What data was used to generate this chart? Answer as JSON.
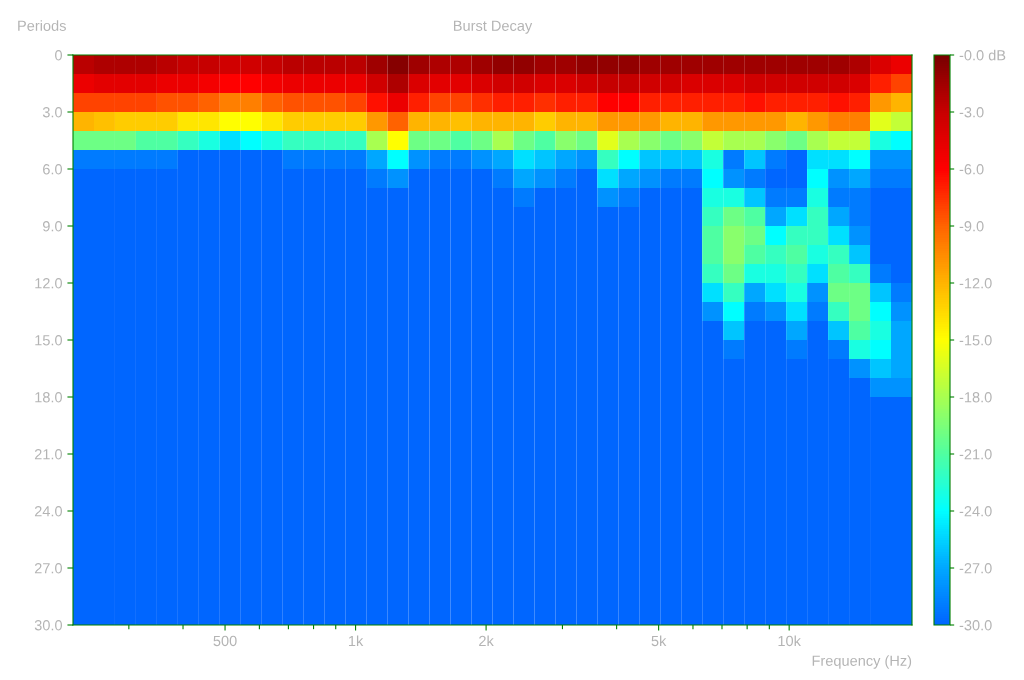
{
  "chart_data": {
    "type": "heatmap",
    "title": "Burst Decay",
    "xlabel": "Frequency (Hz)",
    "ylabel": "Periods",
    "log": "x",
    "xlim": [
      223,
      19200
    ],
    "xticks": [
      {
        "value": 300,
        "label": null
      },
      {
        "value": 400,
        "label": null
      },
      500,
      {
        "value": 600,
        "label": null
      },
      {
        "value": 700,
        "label": null
      },
      {
        "value": 800,
        "label": null
      },
      {
        "value": 900,
        "label": null
      },
      {
        "value": 1000,
        "label": "1k"
      },
      {
        "value": 2000,
        "label": "2k"
      },
      {
        "value": 3000,
        "label": null
      },
      {
        "value": 4000,
        "label": null
      },
      {
        "value": 5000,
        "label": "5k"
      },
      {
        "value": 6000,
        "label": null
      },
      {
        "value": 7000,
        "label": null
      },
      {
        "value": 8000,
        "label": null
      },
      {
        "value": 9000,
        "label": null
      },
      {
        "value": 10000,
        "label": "10k"
      }
    ],
    "ylim": [
      30,
      0
    ],
    "yticks": [
      0,
      {
        "value": 3,
        "label": "3.0"
      },
      {
        "value": 6,
        "label": "6.0"
      },
      {
        "value": 9,
        "label": "9.0"
      },
      {
        "value": 12,
        "label": "12.0"
      },
      {
        "value": 15,
        "label": "15.0"
      },
      {
        "value": 18,
        "label": "18.0"
      },
      {
        "value": 21,
        "label": "21.0"
      },
      {
        "value": 24,
        "label": "24.0"
      },
      {
        "value": 27,
        "label": "27.0"
      },
      {
        "value": 30,
        "label": "30.0"
      }
    ],
    "clim": [
      -30,
      0
    ],
    "cticks": [
      {
        "value": 0,
        "label": "-0.0 dB"
      },
      {
        "value": -3,
        "label": "-3.0"
      },
      {
        "value": -6,
        "label": "-6.0"
      },
      {
        "value": -9,
        "label": "-9.0"
      },
      {
        "value": -12,
        "label": "-12.0"
      },
      {
        "value": -15,
        "label": "-15.0"
      },
      {
        "value": -18,
        "label": "-18.0"
      },
      {
        "value": -21,
        "label": "-21.0"
      },
      {
        "value": -24,
        "label": "-24.0"
      },
      {
        "value": -27,
        "label": "-27.0"
      },
      {
        "value": -30,
        "label": "-30.0"
      }
    ],
    "cells": [
      [
        -2.5,
        -2,
        -2,
        -2,
        -2.5,
        -3,
        -3,
        -3.5,
        -3.5,
        -3,
        -2.5,
        -2.5,
        -2.5,
        -2.5,
        -1.5,
        -0.5,
        -1.5,
        -2,
        -2,
        -1.5,
        -1,
        -1,
        -1.5,
        -1.5,
        -1,
        -1,
        -1,
        -1.5,
        -1.5,
        -1.5,
        -1.5,
        -1.5,
        -1.5,
        -1.5,
        -1.5,
        -1.5,
        -1.5,
        -2,
        -4,
        -5
      ],
      [
        -5,
        -4.5,
        -4.5,
        -4.5,
        -5,
        -5,
        -5.5,
        -6,
        -6,
        -5.5,
        -5,
        -5,
        -5,
        -5,
        -3.5,
        -2,
        -4,
        -4.5,
        -4.5,
        -4,
        -3.5,
        -3.5,
        -4,
        -4,
        -3.5,
        -3,
        -3,
        -3.5,
        -3.5,
        -4,
        -4,
        -4,
        -3.5,
        -3.5,
        -3.5,
        -3.5,
        -3.5,
        -4,
        -7,
        -8
      ],
      [
        -8,
        -8,
        -8,
        -8,
        -8.5,
        -8.5,
        -9,
        -10,
        -10,
        -9,
        -8.5,
        -8.5,
        -8.5,
        -8,
        -6.5,
        -5,
        -7,
        -8,
        -8,
        -7.5,
        -7,
        -7,
        -7.5,
        -7,
        -7,
        -6,
        -6,
        -7,
        -7,
        -7,
        -7,
        -7,
        -6.5,
        -7,
        -7,
        -7,
        -6.5,
        -7,
        -11,
        -12
      ],
      [
        -12,
        -12.5,
        -13,
        -13,
        -13,
        -14,
        -14,
        -15,
        -15,
        -14,
        -13,
        -13,
        -13,
        -13,
        -11,
        -9,
        -12,
        -12,
        -12.5,
        -12,
        -12,
        -12,
        -13,
        -12,
        -12,
        -11,
        -11,
        -11,
        -12,
        -12,
        -11,
        -11,
        -11,
        -11,
        -12,
        -11,
        -10,
        -10,
        -16,
        -17
      ],
      [
        -20,
        -20,
        -20,
        -21,
        -21,
        -22,
        -23,
        -25,
        -24,
        -23,
        -22,
        -22,
        -22,
        -22,
        -18,
        -15,
        -20,
        -20,
        -21,
        -20,
        -18,
        -20,
        -21,
        -19,
        -20,
        -16,
        -18,
        -19,
        -20,
        -19,
        -17,
        -18,
        -18,
        -19,
        -20,
        -18,
        -17,
        -17,
        -23,
        -24
      ],
      [
        -29,
        -29,
        -29,
        -29,
        -29,
        -30,
        -30,
        -30,
        -30,
        -30,
        -29,
        -29,
        -29,
        -29,
        -27,
        -24,
        -28,
        -29,
        -29,
        -28,
        -27,
        -25,
        -26,
        -27,
        -28,
        -22,
        -24,
        -26,
        -26,
        -26,
        -23,
        -29,
        -26,
        -29,
        -30,
        -25,
        -25,
        -24,
        -28,
        -28
      ],
      [
        -30,
        -30,
        -30,
        -30,
        -30,
        -30,
        -30,
        -30,
        -30,
        -30,
        -30,
        -30,
        -30,
        -30,
        -29,
        -28,
        -30,
        -30,
        -30,
        -30,
        -29,
        -27,
        -28,
        -29,
        -30,
        -25,
        -27,
        -28,
        -29,
        -29,
        -24,
        -28,
        -29,
        -30,
        -30,
        -24,
        -28,
        -27,
        -29,
        -29
      ],
      [
        -30,
        -30,
        -30,
        -30,
        -30,
        -30,
        -30,
        -30,
        -30,
        -30,
        -30,
        -30,
        -30,
        -30,
        -30,
        -30,
        -30,
        -30,
        -30,
        -30,
        -30,
        -29,
        -30,
        -30,
        -30,
        -28,
        -29,
        -30,
        -30,
        -30,
        -23,
        -23,
        -26,
        -29,
        -29,
        -23,
        -29,
        -29,
        -30,
        -30
      ],
      [
        -30,
        -30,
        -30,
        -30,
        -30,
        -30,
        -30,
        -30,
        -30,
        -30,
        -30,
        -30,
        -30,
        -30,
        -30,
        -30,
        -30,
        -30,
        -30,
        -30,
        -30,
        -30,
        -30,
        -30,
        -30,
        -30,
        -30,
        -30,
        -30,
        -30,
        -22,
        -20,
        -21,
        -27,
        -25,
        -22,
        -27,
        -29,
        -30,
        -30
      ],
      [
        -30,
        -30,
        -30,
        -30,
        -30,
        -30,
        -30,
        -30,
        -30,
        -30,
        -30,
        -30,
        -30,
        -30,
        -30,
        -30,
        -30,
        -30,
        -30,
        -30,
        -30,
        -30,
        -30,
        -30,
        -30,
        -30,
        -30,
        -30,
        -30,
        -30,
        -21,
        -19,
        -20,
        -24,
        -22,
        -22,
        -25,
        -28,
        -30,
        -30
      ],
      [
        -30,
        -30,
        -30,
        -30,
        -30,
        -30,
        -30,
        -30,
        -30,
        -30,
        -30,
        -30,
        -30,
        -30,
        -30,
        -30,
        -30,
        -30,
        -30,
        -30,
        -30,
        -30,
        -30,
        -30,
        -30,
        -30,
        -30,
        -30,
        -30,
        -30,
        -21,
        -19,
        -21,
        -22,
        -21,
        -23,
        -22,
        -26,
        -30,
        -30
      ],
      [
        -30,
        -30,
        -30,
        -30,
        -30,
        -30,
        -30,
        -30,
        -30,
        -30,
        -30,
        -30,
        -30,
        -30,
        -30,
        -30,
        -30,
        -30,
        -30,
        -30,
        -30,
        -30,
        -30,
        -30,
        -30,
        -30,
        -30,
        -30,
        -30,
        -30,
        -22,
        -20,
        -23,
        -23,
        -22,
        -25,
        -21,
        -22,
        -29,
        -30
      ],
      [
        -30,
        -30,
        -30,
        -30,
        -30,
        -30,
        -30,
        -30,
        -30,
        -30,
        -30,
        -30,
        -30,
        -30,
        -30,
        -30,
        -30,
        -30,
        -30,
        -30,
        -30,
        -30,
        -30,
        -30,
        -30,
        -30,
        -30,
        -30,
        -30,
        -30,
        -25,
        -22,
        -27,
        -25,
        -23,
        -28,
        -20,
        -20,
        -26,
        -29
      ],
      [
        -30,
        -30,
        -30,
        -30,
        -30,
        -30,
        -30,
        -30,
        -30,
        -30,
        -30,
        -30,
        -30,
        -30,
        -30,
        -30,
        -30,
        -30,
        -30,
        -30,
        -30,
        -30,
        -30,
        -30,
        -30,
        -30,
        -30,
        -30,
        -30,
        -30,
        -28,
        -24,
        -29,
        -28,
        -25,
        -29,
        -22,
        -20,
        -24,
        -28
      ],
      [
        -30,
        -30,
        -30,
        -30,
        -30,
        -30,
        -30,
        -30,
        -30,
        -30,
        -30,
        -30,
        -30,
        -30,
        -30,
        -30,
        -30,
        -30,
        -30,
        -30,
        -30,
        -30,
        -30,
        -30,
        -30,
        -30,
        -30,
        -30,
        -30,
        -30,
        -30,
        -26,
        -30,
        -30,
        -27,
        -30,
        -26,
        -21,
        -23,
        -27
      ],
      [
        -30,
        -30,
        -30,
        -30,
        -30,
        -30,
        -30,
        -30,
        -30,
        -30,
        -30,
        -30,
        -30,
        -30,
        -30,
        -30,
        -30,
        -30,
        -30,
        -30,
        -30,
        -30,
        -30,
        -30,
        -30,
        -30,
        -30,
        -30,
        -30,
        -30,
        -30,
        -29,
        -30,
        -30,
        -29,
        -30,
        -29,
        -23,
        -24,
        -27
      ],
      [
        -30,
        -30,
        -30,
        -30,
        -30,
        -30,
        -30,
        -30,
        -30,
        -30,
        -30,
        -30,
        -30,
        -30,
        -30,
        -30,
        -30,
        -30,
        -30,
        -30,
        -30,
        -30,
        -30,
        -30,
        -30,
        -30,
        -30,
        -30,
        -30,
        -30,
        -30,
        -30,
        -30,
        -30,
        -30,
        -30,
        -30,
        -28,
        -26,
        -27
      ],
      [
        -30,
        -30,
        -30,
        -30,
        -30,
        -30,
        -30,
        -30,
        -30,
        -30,
        -30,
        -30,
        -30,
        -30,
        -30,
        -30,
        -30,
        -30,
        -30,
        -30,
        -30,
        -30,
        -30,
        -30,
        -30,
        -30,
        -30,
        -30,
        -30,
        -30,
        -30,
        -30,
        -30,
        -30,
        -30,
        -30,
        -30,
        -30,
        -28,
        -28
      ],
      [
        -30,
        -30,
        -30,
        -30,
        -30,
        -30,
        -30,
        -30,
        -30,
        -30,
        -30,
        -30,
        -30,
        -30,
        -30,
        -30,
        -30,
        -30,
        -30,
        -30,
        -30,
        -30,
        -30,
        -30,
        -30,
        -30,
        -30,
        -30,
        -30,
        -30,
        -30,
        -30,
        -30,
        -30,
        -30,
        -30,
        -30,
        -30,
        -30,
        -30
      ],
      [
        -30,
        -30,
        -30,
        -30,
        -30,
        -30,
        -30,
        -30,
        -30,
        -30,
        -30,
        -30,
        -30,
        -30,
        -30,
        -30,
        -30,
        -30,
        -30,
        -30,
        -30,
        -30,
        -30,
        -30,
        -30,
        -30,
        -30,
        -30,
        -30,
        -30,
        -30,
        -30,
        -30,
        -30,
        -30,
        -30,
        -30,
        -30,
        -30,
        -30
      ],
      [
        -30,
        -30,
        -30,
        -30,
        -30,
        -30,
        -30,
        -30,
        -30,
        -30,
        -30,
        -30,
        -30,
        -30,
        -30,
        -30,
        -30,
        -30,
        -30,
        -30,
        -30,
        -30,
        -30,
        -30,
        -30,
        -30,
        -30,
        -30,
        -30,
        -30,
        -30,
        -30,
        -30,
        -30,
        -30,
        -30,
        -30,
        -30,
        -30,
        -30
      ],
      [
        -30,
        -30,
        -30,
        -30,
        -30,
        -30,
        -30,
        -30,
        -30,
        -30,
        -30,
        -30,
        -30,
        -30,
        -30,
        -30,
        -30,
        -30,
        -30,
        -30,
        -30,
        -30,
        -30,
        -30,
        -30,
        -30,
        -30,
        -30,
        -30,
        -30,
        -30,
        -30,
        -30,
        -30,
        -30,
        -30,
        -30,
        -30,
        -30,
        -30
      ],
      [
        -30,
        -30,
        -30,
        -30,
        -30,
        -30,
        -30,
        -30,
        -30,
        -30,
        -30,
        -30,
        -30,
        -30,
        -30,
        -30,
        -30,
        -30,
        -30,
        -30,
        -30,
        -30,
        -30,
        -30,
        -30,
        -30,
        -30,
        -30,
        -30,
        -30,
        -30,
        -30,
        -30,
        -30,
        -30,
        -30,
        -30,
        -30,
        -30,
        -30
      ],
      [
        -30,
        -30,
        -30,
        -30,
        -30,
        -30,
        -30,
        -30,
        -30,
        -30,
        -30,
        -30,
        -30,
        -30,
        -30,
        -30,
        -30,
        -30,
        -30,
        -30,
        -30,
        -30,
        -30,
        -30,
        -30,
        -30,
        -30,
        -30,
        -30,
        -30,
        -30,
        -30,
        -30,
        -30,
        -30,
        -30,
        -30,
        -30,
        -30,
        -30
      ],
      [
        -30,
        -30,
        -30,
        -30,
        -30,
        -30,
        -30,
        -30,
        -30,
        -30,
        -30,
        -30,
        -30,
        -30,
        -30,
        -30,
        -30,
        -30,
        -30,
        -30,
        -30,
        -30,
        -30,
        -30,
        -30,
        -30,
        -30,
        -30,
        -30,
        -30,
        -30,
        -30,
        -30,
        -30,
        -30,
        -30,
        -30,
        -30,
        -30,
        -30
      ],
      [
        -30,
        -30,
        -30,
        -30,
        -30,
        -30,
        -30,
        -30,
        -30,
        -30,
        -30,
        -30,
        -30,
        -30,
        -30,
        -30,
        -30,
        -30,
        -30,
        -30,
        -30,
        -30,
        -30,
        -30,
        -30,
        -30,
        -30,
        -30,
        -30,
        -30,
        -30,
        -30,
        -30,
        -30,
        -30,
        -30,
        -30,
        -30,
        -30,
        -30
      ],
      [
        -30,
        -30,
        -30,
        -30,
        -30,
        -30,
        -30,
        -30,
        -30,
        -30,
        -30,
        -30,
        -30,
        -30,
        -30,
        -30,
        -30,
        -30,
        -30,
        -30,
        -30,
        -30,
        -30,
        -30,
        -30,
        -30,
        -30,
        -30,
        -30,
        -30,
        -30,
        -30,
        -30,
        -30,
        -30,
        -30,
        -30,
        -30,
        -30,
        -30
      ],
      [
        -30,
        -30,
        -30,
        -30,
        -30,
        -30,
        -30,
        -30,
        -30,
        -30,
        -30,
        -30,
        -30,
        -30,
        -30,
        -30,
        -30,
        -30,
        -30,
        -30,
        -30,
        -30,
        -30,
        -30,
        -30,
        -30,
        -30,
        -30,
        -30,
        -30,
        -30,
        -30,
        -30,
        -30,
        -30,
        -30,
        -30,
        -30,
        -30,
        -30
      ],
      [
        -30,
        -30,
        -30,
        -30,
        -30,
        -30,
        -30,
        -30,
        -30,
        -30,
        -30,
        -30,
        -30,
        -30,
        -30,
        -30,
        -30,
        -30,
        -30,
        -30,
        -30,
        -30,
        -30,
        -30,
        -30,
        -30,
        -30,
        -30,
        -30,
        -30,
        -30,
        -30,
        -30,
        -30,
        -30,
        -30,
        -30,
        -30,
        -30,
        -30
      ],
      [
        -30,
        -30,
        -30,
        -30,
        -30,
        -30,
        -30,
        -30,
        -30,
        -30,
        -30,
        -30,
        -30,
        -30,
        -30,
        -30,
        -30,
        -30,
        -30,
        -30,
        -30,
        -30,
        -30,
        -30,
        -30,
        -30,
        -30,
        -30,
        -30,
        -30,
        -30,
        -30,
        -30,
        -30,
        -30,
        -30,
        -30,
        -30,
        -30,
        -30
      ]
    ]
  }
}
